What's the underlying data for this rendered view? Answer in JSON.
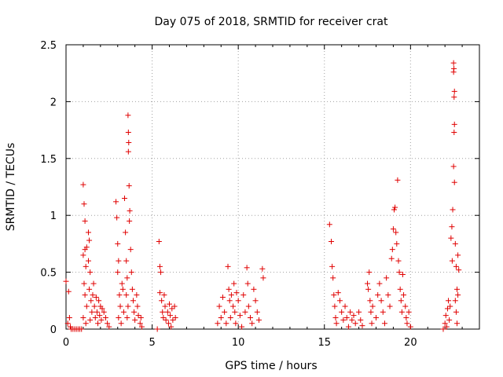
{
  "chart_data": {
    "type": "scatter",
    "title": "Day 075 of 2018, SRMTID for receiver crat",
    "xlabel": "GPS time / hours",
    "ylabel": "SRMTID / TECUs",
    "xlim": [
      0,
      24
    ],
    "ylim": [
      0,
      2.5
    ],
    "x_ticks": [
      0,
      5,
      10,
      15,
      20
    ],
    "x_tick_labels": [
      "0",
      "5",
      "10",
      "15",
      "20"
    ],
    "y_ticks": [
      0,
      0.5,
      1,
      1.5,
      2,
      2.5
    ],
    "y_tick_labels": [
      "0",
      "0.5",
      "1",
      "1.5",
      "2",
      "2.5"
    ],
    "grid": true,
    "marker": "+",
    "series": [
      {
        "name": "SRMTID",
        "color": "#e00000",
        "points": [
          [
            0.0,
            0.42
          ],
          [
            0.1,
            0.05
          ],
          [
            0.15,
            0.33
          ],
          [
            0.2,
            0.1
          ],
          [
            0.25,
            0.02
          ],
          [
            0.3,
            0.0
          ],
          [
            0.4,
            0.0
          ],
          [
            0.5,
            0.0
          ],
          [
            0.6,
            0.0
          ],
          [
            0.7,
            0.0
          ],
          [
            0.8,
            0.0
          ],
          [
            0.9,
            0.0
          ],
          [
            1.0,
            1.27
          ],
          [
            1.05,
            1.1
          ],
          [
            1.1,
            0.95
          ],
          [
            1.0,
            0.65
          ],
          [
            1.1,
            0.7
          ],
          [
            1.15,
            0.55
          ],
          [
            1.2,
            0.72
          ],
          [
            1.05,
            0.4
          ],
          [
            1.1,
            0.3
          ],
          [
            1.2,
            0.2
          ],
          [
            1.0,
            0.1
          ],
          [
            1.15,
            0.05
          ],
          [
            1.3,
            0.85
          ],
          [
            1.35,
            0.78
          ],
          [
            1.3,
            0.6
          ],
          [
            1.4,
            0.5
          ],
          [
            1.35,
            0.35
          ],
          [
            1.45,
            0.25
          ],
          [
            1.5,
            0.15
          ],
          [
            1.4,
            0.08
          ],
          [
            1.55,
            0.3
          ],
          [
            1.6,
            0.4
          ],
          [
            1.65,
            0.2
          ],
          [
            1.7,
            0.1
          ],
          [
            1.75,
            0.28
          ],
          [
            1.8,
            0.15
          ],
          [
            1.85,
            0.05
          ],
          [
            1.9,
            0.25
          ],
          [
            1.95,
            0.12
          ],
          [
            2.0,
            0.2
          ],
          [
            2.05,
            0.08
          ],
          [
            2.1,
            0.18
          ],
          [
            2.2,
            0.15
          ],
          [
            2.3,
            0.1
          ],
          [
            2.4,
            0.05
          ],
          [
            2.5,
            0.02
          ],
          [
            2.9,
            1.12
          ],
          [
            2.95,
            0.98
          ],
          [
            3.0,
            0.75
          ],
          [
            3.05,
            0.6
          ],
          [
            3.0,
            0.5
          ],
          [
            3.1,
            0.3
          ],
          [
            3.15,
            0.2
          ],
          [
            3.05,
            0.1
          ],
          [
            3.2,
            0.05
          ],
          [
            3.25,
            0.4
          ],
          [
            3.3,
            0.35
          ],
          [
            3.35,
            0.15
          ],
          [
            3.4,
            1.15
          ],
          [
            3.45,
            0.85
          ],
          [
            3.5,
            0.6
          ],
          [
            3.55,
            0.45
          ],
          [
            3.5,
            0.3
          ],
          [
            3.6,
            0.2
          ],
          [
            3.55,
            0.1
          ],
          [
            3.6,
            1.88
          ],
          [
            3.62,
            1.73
          ],
          [
            3.64,
            1.64
          ],
          [
            3.62,
            1.56
          ],
          [
            3.66,
            1.26
          ],
          [
            3.7,
            1.04
          ],
          [
            3.68,
            0.95
          ],
          [
            3.75,
            0.7
          ],
          [
            3.8,
            0.5
          ],
          [
            3.85,
            0.35
          ],
          [
            3.9,
            0.25
          ],
          [
            3.95,
            0.15
          ],
          [
            4.0,
            0.08
          ],
          [
            4.1,
            0.3
          ],
          [
            4.15,
            0.2
          ],
          [
            4.2,
            0.12
          ],
          [
            4.3,
            0.05
          ],
          [
            4.35,
            0.1
          ],
          [
            4.4,
            0.02
          ],
          [
            5.3,
            0.0
          ],
          [
            5.4,
            0.77
          ],
          [
            5.45,
            0.55
          ],
          [
            5.5,
            0.5
          ],
          [
            5.45,
            0.32
          ],
          [
            5.55,
            0.25
          ],
          [
            5.6,
            0.15
          ],
          [
            5.65,
            0.1
          ],
          [
            5.7,
            0.3
          ],
          [
            5.75,
            0.2
          ],
          [
            5.8,
            0.08
          ],
          [
            5.9,
            0.15
          ],
          [
            5.95,
            0.05
          ],
          [
            6.0,
            0.22
          ],
          [
            6.05,
            0.12
          ],
          [
            6.1,
            0.02
          ],
          [
            6.15,
            0.18
          ],
          [
            6.2,
            0.08
          ],
          [
            6.3,
            0.2
          ],
          [
            6.35,
            0.1
          ],
          [
            8.8,
            0.05
          ],
          [
            8.9,
            0.2
          ],
          [
            9.0,
            0.1
          ],
          [
            9.1,
            0.28
          ],
          [
            9.2,
            0.15
          ],
          [
            9.3,
            0.05
          ],
          [
            9.4,
            0.55
          ],
          [
            9.45,
            0.35
          ],
          [
            9.5,
            0.25
          ],
          [
            9.55,
            0.1
          ],
          [
            9.6,
            0.3
          ],
          [
            9.7,
            0.2
          ],
          [
            9.75,
            0.4
          ],
          [
            9.8,
            0.15
          ],
          [
            9.85,
            0.05
          ],
          [
            9.9,
            0.32
          ],
          [
            10.0,
            0.25
          ],
          [
            10.1,
            0.12
          ],
          [
            10.2,
            0.02
          ],
          [
            10.3,
            0.3
          ],
          [
            10.4,
            0.15
          ],
          [
            10.5,
            0.54
          ],
          [
            10.55,
            0.4
          ],
          [
            10.6,
            0.2
          ],
          [
            10.7,
            0.1
          ],
          [
            10.8,
            0.05
          ],
          [
            10.9,
            0.35
          ],
          [
            11.0,
            0.25
          ],
          [
            11.1,
            0.15
          ],
          [
            11.2,
            0.08
          ],
          [
            11.4,
            0.53
          ],
          [
            11.45,
            0.45
          ],
          [
            15.3,
            0.92
          ],
          [
            15.4,
            0.77
          ],
          [
            15.45,
            0.55
          ],
          [
            15.5,
            0.45
          ],
          [
            15.55,
            0.3
          ],
          [
            15.6,
            0.2
          ],
          [
            15.65,
            0.1
          ],
          [
            15.7,
            0.05
          ],
          [
            15.8,
            0.32
          ],
          [
            15.9,
            0.25
          ],
          [
            16.0,
            0.15
          ],
          [
            16.1,
            0.08
          ],
          [
            16.2,
            0.2
          ],
          [
            16.3,
            0.1
          ],
          [
            16.4,
            0.02
          ],
          [
            16.5,
            0.15
          ],
          [
            16.6,
            0.08
          ],
          [
            16.7,
            0.12
          ],
          [
            16.8,
            0.05
          ],
          [
            17.0,
            0.15
          ],
          [
            17.1,
            0.08
          ],
          [
            17.2,
            0.03
          ],
          [
            17.5,
            0.4
          ],
          [
            17.55,
            0.35
          ],
          [
            17.6,
            0.5
          ],
          [
            17.65,
            0.25
          ],
          [
            17.7,
            0.15
          ],
          [
            17.75,
            0.05
          ],
          [
            17.8,
            0.2
          ],
          [
            18.0,
            0.1
          ],
          [
            18.1,
            0.3
          ],
          [
            18.2,
            0.4
          ],
          [
            18.3,
            0.25
          ],
          [
            18.4,
            0.15
          ],
          [
            18.5,
            0.05
          ],
          [
            18.6,
            0.45
          ],
          [
            18.7,
            0.3
          ],
          [
            18.8,
            0.2
          ],
          [
            18.9,
            0.62
          ],
          [
            18.95,
            0.7
          ],
          [
            19.0,
            0.88
          ],
          [
            19.05,
            1.05
          ],
          [
            19.1,
            1.07
          ],
          [
            19.15,
            0.85
          ],
          [
            19.2,
            0.75
          ],
          [
            19.25,
            1.31
          ],
          [
            19.3,
            0.6
          ],
          [
            19.35,
            0.5
          ],
          [
            19.4,
            0.35
          ],
          [
            19.45,
            0.25
          ],
          [
            19.5,
            0.15
          ],
          [
            19.55,
            0.48
          ],
          [
            19.6,
            0.3
          ],
          [
            19.7,
            0.2
          ],
          [
            19.75,
            0.1
          ],
          [
            19.8,
            0.05
          ],
          [
            19.9,
            0.15
          ],
          [
            20.0,
            0.02
          ],
          [
            21.9,
            0.0
          ],
          [
            22.0,
            0.05
          ],
          [
            22.05,
            0.12
          ],
          [
            22.1,
            0.02
          ],
          [
            22.15,
            0.18
          ],
          [
            22.2,
            0.25
          ],
          [
            22.25,
            0.08
          ],
          [
            22.3,
            0.2
          ],
          [
            22.35,
            0.8
          ],
          [
            22.4,
            0.9
          ],
          [
            22.45,
            1.05
          ],
          [
            22.42,
            0.6
          ],
          [
            22.5,
            2.34
          ],
          [
            22.52,
            2.29
          ],
          [
            22.5,
            2.26
          ],
          [
            22.55,
            2.09
          ],
          [
            22.53,
            2.04
          ],
          [
            22.55,
            1.8
          ],
          [
            22.53,
            1.73
          ],
          [
            22.5,
            1.43
          ],
          [
            22.55,
            1.29
          ],
          [
            22.6,
            0.75
          ],
          [
            22.65,
            0.55
          ],
          [
            22.7,
            0.35
          ],
          [
            22.6,
            0.25
          ],
          [
            22.65,
            0.15
          ],
          [
            22.7,
            0.05
          ],
          [
            22.75,
            0.65
          ],
          [
            22.8,
            0.52
          ],
          [
            22.75,
            0.3
          ]
        ]
      }
    ]
  }
}
